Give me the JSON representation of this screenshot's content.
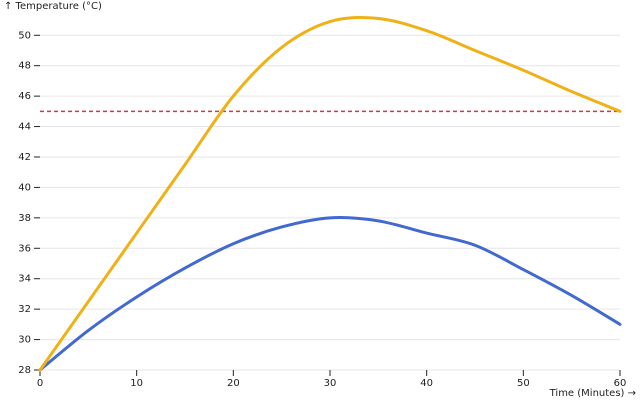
{
  "chart_data": {
    "type": "line",
    "x_label": "Time (Minutes) →",
    "y_label": "↑ Temperature (°C)",
    "x": [
      0,
      5,
      10,
      15,
      20,
      25,
      30,
      35,
      40,
      45,
      50,
      55,
      60
    ],
    "series": [
      {
        "color": "#4269d0",
        "values": [
          28,
          30.6,
          32.8,
          34.7,
          36.3,
          37.4,
          38.0,
          37.8,
          37.0,
          36.2,
          34.6,
          32.9,
          31.0
        ]
      },
      {
        "color": "#efb118",
        "values": [
          28,
          32.5,
          37.0,
          41.5,
          46.0,
          49.2,
          50.9,
          51.1,
          50.3,
          49.0,
          47.7,
          46.3,
          45.0
        ]
      }
    ],
    "threshold": {
      "value": 45,
      "color": "#e8312f",
      "dashed": true
    },
    "xlim": [
      0,
      60
    ],
    "xticks": [
      0,
      10,
      20,
      30,
      40,
      50,
      60
    ],
    "ylim": [
      28,
      51.2
    ],
    "yticks": [
      28,
      30,
      32,
      34,
      36,
      38,
      40,
      42,
      44,
      46,
      48,
      50
    ],
    "grid": true
  }
}
